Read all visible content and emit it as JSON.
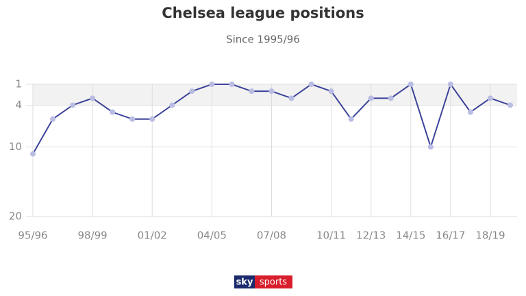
{
  "chart_data": {
    "type": "line",
    "title": "Chelsea league positions",
    "subtitle": "Since 1995/96",
    "categories": [
      "95/96",
      null,
      null,
      "98/99",
      null,
      null,
      "01/02",
      null,
      null,
      "04/05",
      null,
      null,
      "07/08",
      null,
      null,
      "10/11",
      null,
      "12/13",
      null,
      "14/15",
      null,
      "16/17",
      null,
      "18/19",
      null
    ],
    "values": [
      11,
      6,
      4,
      3,
      5,
      6,
      6,
      4,
      2,
      1,
      1,
      2,
      2,
      3,
      1,
      2,
      6,
      3,
      3,
      1,
      10,
      1,
      5,
      3,
      4
    ],
    "color": "#3b4199",
    "marker_color": "#b9bde3",
    "ylim": [
      20,
      1
    ],
    "yticks": [
      1,
      4,
      10,
      20
    ],
    "highlight_band": [
      1,
      4
    ],
    "grid": true
  },
  "logo": {
    "sky": "sky",
    "sports": "sports"
  }
}
